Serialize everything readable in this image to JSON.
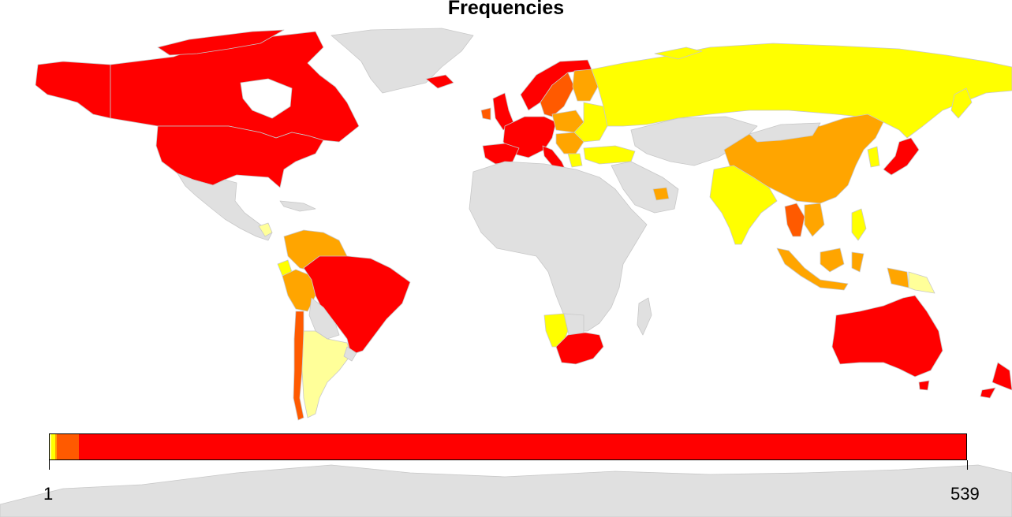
{
  "title": "Frequencies",
  "legend": {
    "min_label": "1",
    "max_label": "539"
  },
  "colors": {
    "no_data": "#e0e0e0",
    "ocean": "#ffffff",
    "border": "#c8c8c8",
    "scale": [
      "#ffff99",
      "#ffff00",
      "#ffa500",
      "#ff5a00",
      "#ff0000"
    ]
  },
  "legend_scale": [
    {
      "color": "#ffff99",
      "share": 0.002
    },
    {
      "color": "#ffff00",
      "share": 0.004
    },
    {
      "color": "#ffa500",
      "share": 0.002
    },
    {
      "color": "#ff5a00",
      "share": 0.024
    },
    {
      "color": "#ff0000",
      "share": 0.968
    }
  ],
  "regions": [
    {
      "name": "Canada",
      "level": "high"
    },
    {
      "name": "United States",
      "level": "high"
    },
    {
      "name": "Greenland",
      "level": "none"
    },
    {
      "name": "Alaska",
      "level": "high"
    },
    {
      "name": "Mexico",
      "level": "none"
    },
    {
      "name": "Venezuela",
      "level": "medium"
    },
    {
      "name": "Colombia",
      "level": "medium"
    },
    {
      "name": "Ecuador",
      "level": "low"
    },
    {
      "name": "Peru",
      "level": "medium"
    },
    {
      "name": "Brazil",
      "level": "high"
    },
    {
      "name": "Bolivia",
      "level": "none"
    },
    {
      "name": "Chile",
      "level": "medium-high"
    },
    {
      "name": "Argentina",
      "level": "very-low"
    },
    {
      "name": "Iceland",
      "level": "none"
    },
    {
      "name": "United Kingdom",
      "level": "high"
    },
    {
      "name": "Norway",
      "level": "high"
    },
    {
      "name": "Sweden",
      "level": "medium-high"
    },
    {
      "name": "Finland",
      "level": "medium"
    },
    {
      "name": "Western Europe",
      "level": "high"
    },
    {
      "name": "Poland",
      "level": "medium"
    },
    {
      "name": "Eastern Europe",
      "level": "low"
    },
    {
      "name": "Spain",
      "level": "high"
    },
    {
      "name": "Italy",
      "level": "high"
    },
    {
      "name": "Greece",
      "level": "low"
    },
    {
      "name": "Turkey",
      "level": "low"
    },
    {
      "name": "Russia",
      "level": "low"
    },
    {
      "name": "China",
      "level": "medium"
    },
    {
      "name": "India",
      "level": "low"
    },
    {
      "name": "Japan",
      "level": "high"
    },
    {
      "name": "South Korea",
      "level": "low"
    },
    {
      "name": "Thailand",
      "level": "medium-high"
    },
    {
      "name": "Philippines",
      "level": "low"
    },
    {
      "name": "Indonesia",
      "level": "medium"
    },
    {
      "name": "Papua New Guinea",
      "level": "very-low"
    },
    {
      "name": "UAE",
      "level": "medium"
    },
    {
      "name": "Namibia",
      "level": "low"
    },
    {
      "name": "South Africa",
      "level": "high"
    },
    {
      "name": "Africa",
      "level": "none"
    },
    {
      "name": "Middle East",
      "level": "none"
    },
    {
      "name": "Central Asia",
      "level": "none"
    },
    {
      "name": "Australia",
      "level": "high"
    },
    {
      "name": "New Zealand",
      "level": "high"
    },
    {
      "name": "Antarctica",
      "level": "none"
    }
  ]
}
